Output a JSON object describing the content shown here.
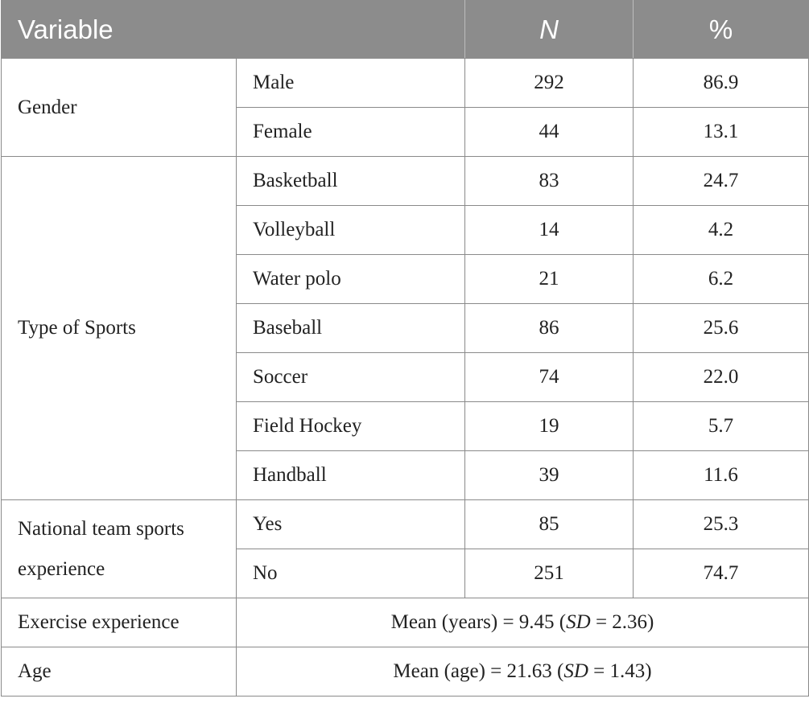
{
  "table": {
    "headers": {
      "variable": "Variable",
      "n": "N",
      "percent": "%"
    },
    "groups": [
      {
        "variable": "Gender",
        "rows": [
          {
            "category": "Male",
            "n": "292",
            "percent": "86.9"
          },
          {
            "category": "Female",
            "n": "44",
            "percent": "13.1"
          }
        ]
      },
      {
        "variable": "Type of Sports",
        "rows": [
          {
            "category": "Basketball",
            "n": "83",
            "percent": "24.7"
          },
          {
            "category": "Volleyball",
            "n": "14",
            "percent": "4.2"
          },
          {
            "category": "Water polo",
            "n": "21",
            "percent": "6.2"
          },
          {
            "category": "Baseball",
            "n": "86",
            "percent": "25.6"
          },
          {
            "category": "Soccer",
            "n": "74",
            "percent": "22.0"
          },
          {
            "category": "Field Hockey",
            "n": "19",
            "percent": "5.7"
          },
          {
            "category": "Handball",
            "n": "39",
            "percent": "11.6"
          }
        ]
      },
      {
        "variable": "National team sports experience",
        "rows": [
          {
            "category": "Yes",
            "n": "85",
            "percent": "25.3"
          },
          {
            "category": "No",
            "n": "251",
            "percent": "74.7"
          }
        ]
      }
    ],
    "summary_rows": [
      {
        "variable": "Exercise experience",
        "prefix": "Mean (years) = 9.45 (",
        "sd_label": "SD",
        "suffix": " = 2.36)"
      },
      {
        "variable": "Age",
        "prefix": "Mean (age) = 21.63 (",
        "sd_label": "SD",
        "suffix": " = 1.43)"
      }
    ]
  }
}
